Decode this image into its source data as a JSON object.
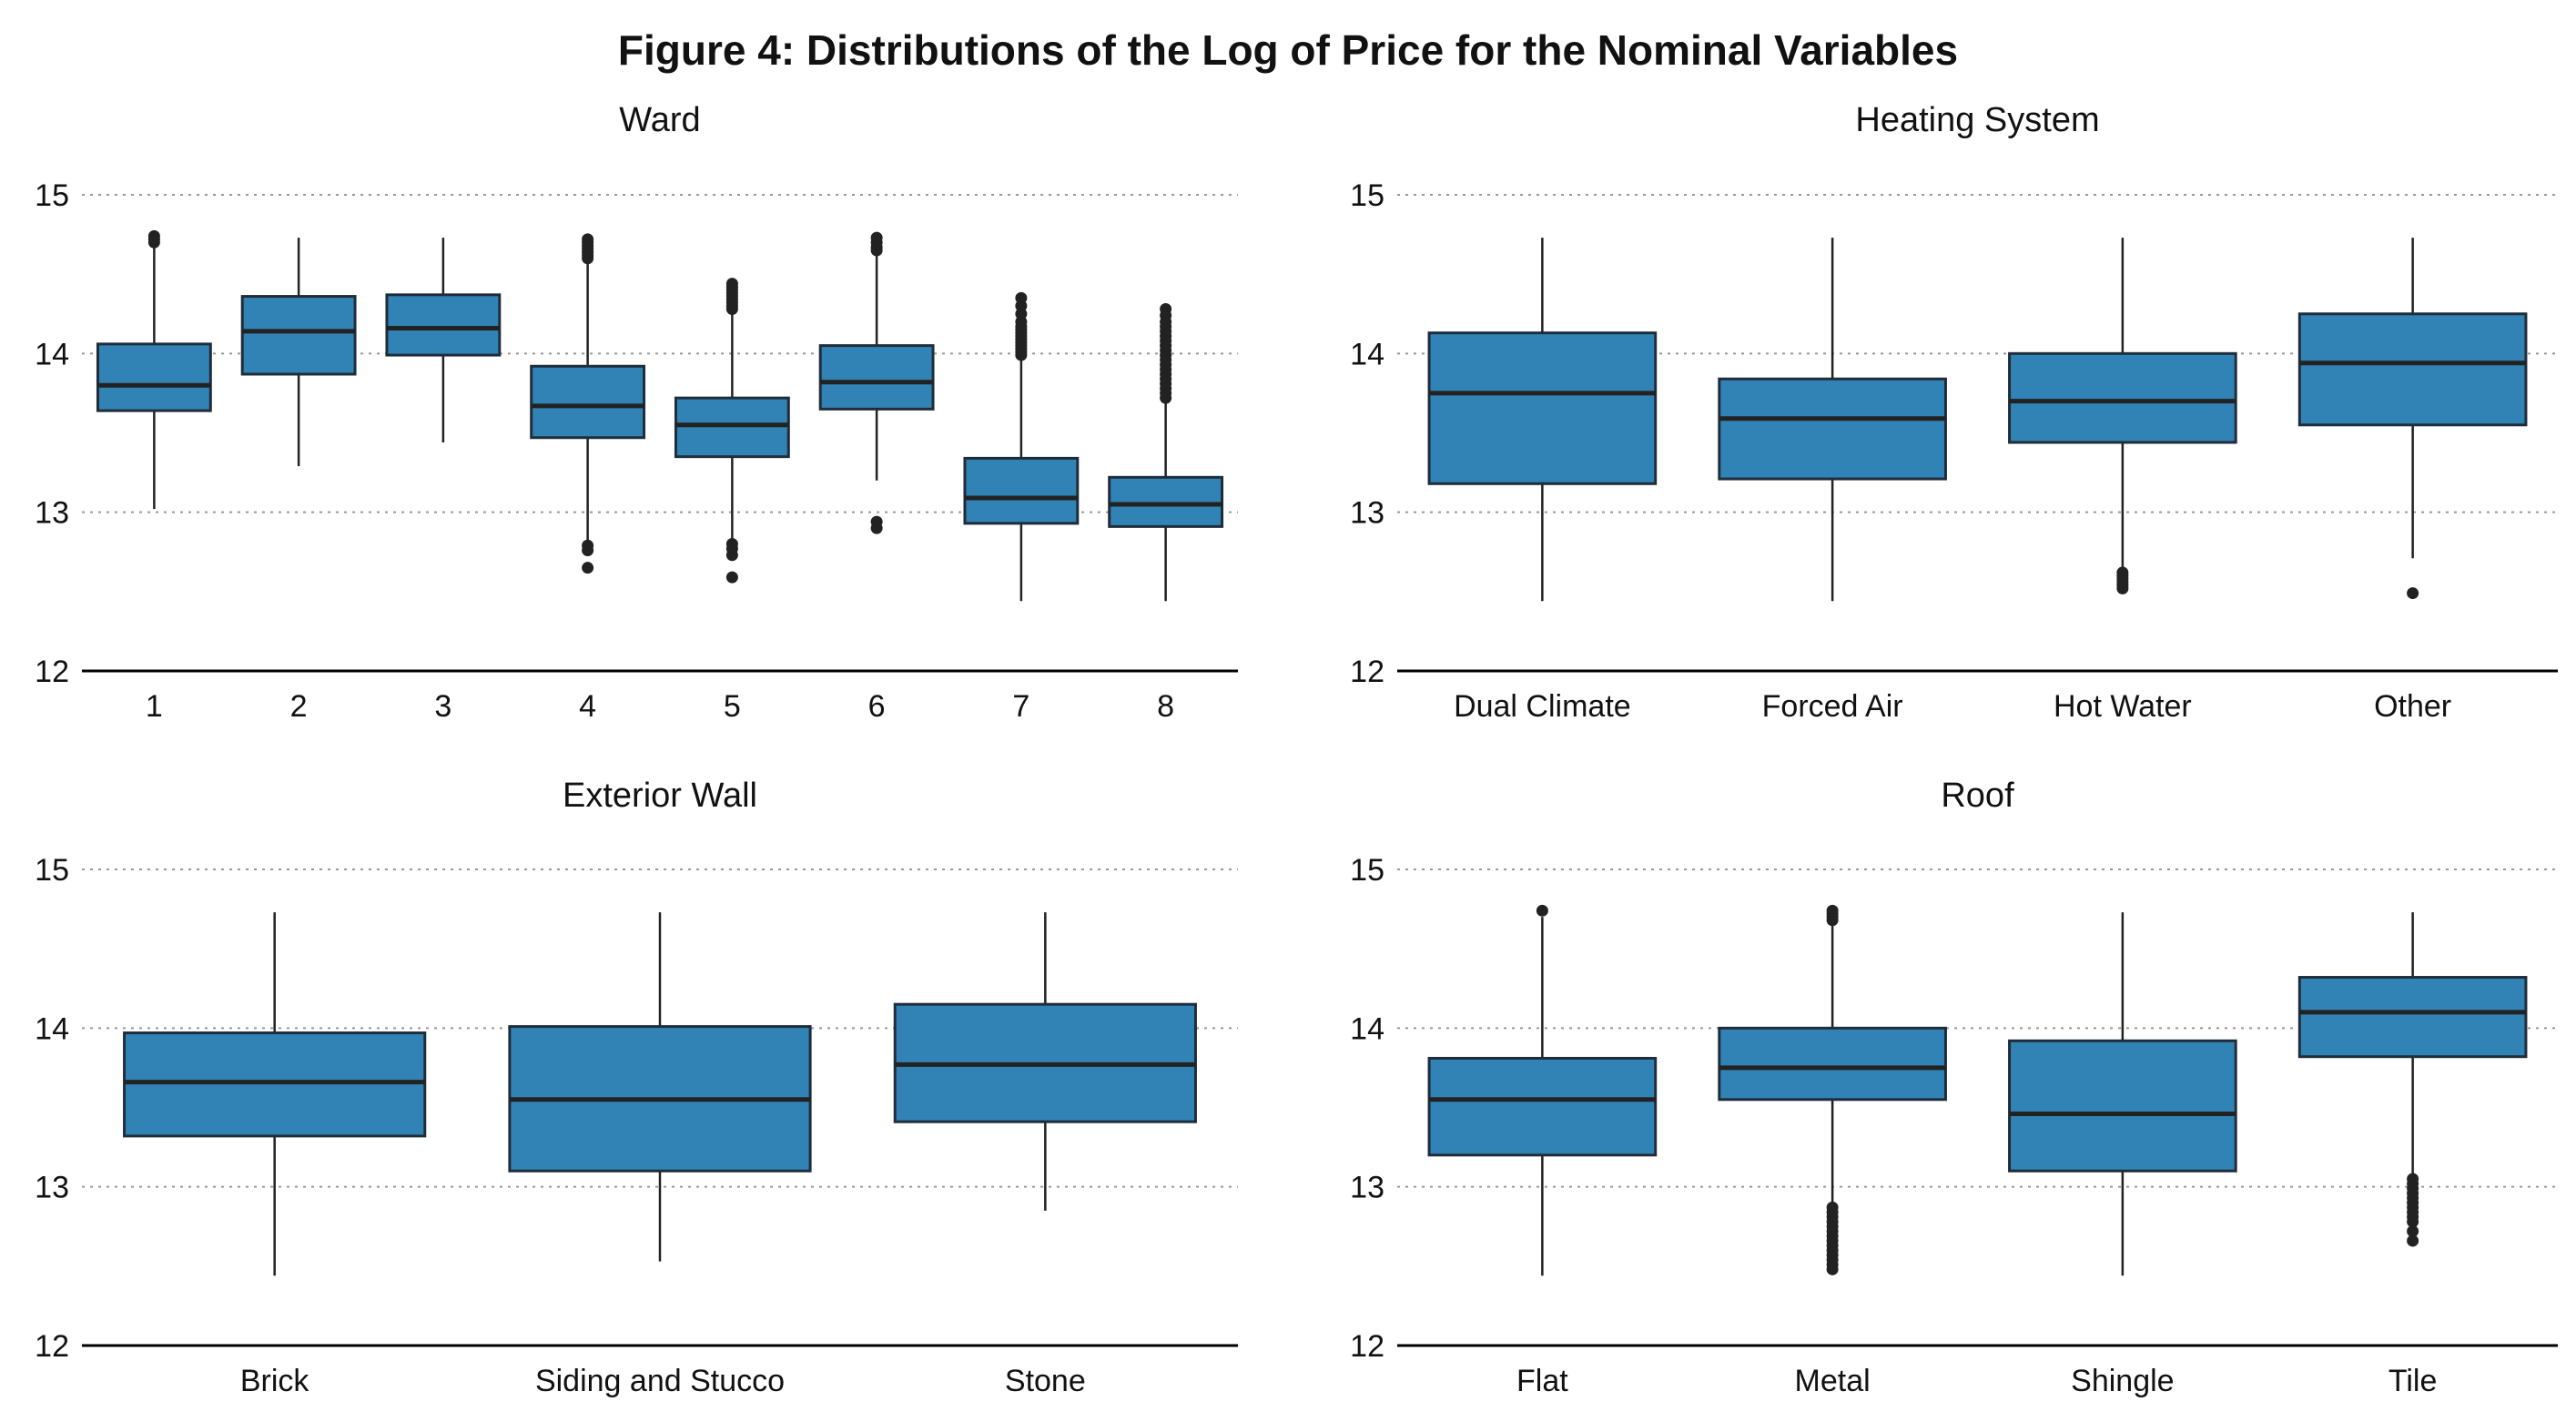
{
  "figure_title": "Figure 4: Distributions of the Log of Price for the Nominal Variables",
  "colors": {
    "box_fill": "#3283B5",
    "box_edge": "#1f2d3a",
    "median": "#222222",
    "grid": "#999999",
    "axis": "#000000"
  },
  "chart_data": [
    {
      "type": "box",
      "title": "Ward",
      "xlabel": "",
      "ylabel": "",
      "ylim": [
        12,
        15
      ],
      "yticks": [
        "12",
        "13",
        "14",
        "15"
      ],
      "grid": "horizontal dotted",
      "categories": [
        "1",
        "2",
        "3",
        "4",
        "5",
        "6",
        "7",
        "8"
      ],
      "boxes": [
        {
          "whislo": 13.02,
          "q1": 13.64,
          "median": 13.8,
          "q3": 14.06,
          "whishi": 14.72,
          "fliers": [
            14.7,
            14.72,
            14.74
          ]
        },
        {
          "whislo": 13.29,
          "q1": 13.87,
          "median": 14.14,
          "q3": 14.36,
          "whishi": 14.73,
          "fliers": []
        },
        {
          "whislo": 13.44,
          "q1": 13.99,
          "median": 14.16,
          "q3": 14.37,
          "whishi": 14.73,
          "fliers": []
        },
        {
          "whislo": 12.82,
          "q1": 13.47,
          "median": 13.67,
          "q3": 13.92,
          "whishi": 14.58,
          "fliers": [
            14.6,
            14.62,
            14.64,
            14.66,
            14.68,
            14.7,
            14.72,
            12.79,
            12.76,
            12.65
          ]
        },
        {
          "whislo": 12.82,
          "q1": 13.35,
          "median": 13.55,
          "q3": 13.72,
          "whishi": 14.26,
          "fliers": [
            14.28,
            14.3,
            14.32,
            14.34,
            14.36,
            14.38,
            14.4,
            14.42,
            14.44,
            12.8,
            12.77,
            12.73,
            12.59
          ]
        },
        {
          "whislo": 13.2,
          "q1": 13.65,
          "median": 13.82,
          "q3": 14.05,
          "whishi": 14.63,
          "fliers": [
            14.65,
            14.67,
            14.7,
            14.73,
            12.94,
            12.9
          ]
        },
        {
          "whislo": 12.44,
          "q1": 12.93,
          "median": 13.09,
          "q3": 13.34,
          "whishi": 13.97,
          "fliers": [
            13.99,
            14.01,
            14.03,
            14.05,
            14.07,
            14.09,
            14.11,
            14.13,
            14.15,
            14.17,
            14.2,
            14.25,
            14.3,
            14.35
          ]
        },
        {
          "whislo": 12.44,
          "q1": 12.91,
          "median": 13.05,
          "q3": 13.22,
          "whishi": 13.7,
          "fliers": [
            13.72,
            13.75,
            13.78,
            13.81,
            13.84,
            13.87,
            13.9,
            13.93,
            13.96,
            13.99,
            14.02,
            14.05,
            14.08,
            14.11,
            14.14,
            14.17,
            14.2,
            14.24,
            14.28
          ]
        }
      ]
    },
    {
      "type": "box",
      "title": "Heating System",
      "xlabel": "",
      "ylabel": "",
      "ylim": [
        12,
        15
      ],
      "yticks": [
        "12",
        "13",
        "14",
        "15"
      ],
      "grid": "horizontal dotted",
      "categories": [
        "Dual Climate",
        "Forced Air",
        "Hot Water",
        "Other"
      ],
      "boxes": [
        {
          "whislo": 12.44,
          "q1": 13.18,
          "median": 13.75,
          "q3": 14.13,
          "whishi": 14.73,
          "fliers": []
        },
        {
          "whislo": 12.44,
          "q1": 13.21,
          "median": 13.59,
          "q3": 13.84,
          "whishi": 14.73,
          "fliers": []
        },
        {
          "whislo": 12.65,
          "q1": 13.44,
          "median": 13.7,
          "q3": 14.0,
          "whishi": 14.73,
          "fliers": [
            12.62,
            12.6,
            12.58,
            12.56,
            12.54,
            12.52
          ]
        },
        {
          "whislo": 12.71,
          "q1": 13.55,
          "median": 13.94,
          "q3": 14.25,
          "whishi": 14.73,
          "fliers": [
            12.49
          ]
        }
      ]
    },
    {
      "type": "box",
      "title": "Exterior Wall",
      "xlabel": "",
      "ylabel": "",
      "ylim": [
        12,
        15
      ],
      "yticks": [
        "12",
        "13",
        "14",
        "15"
      ],
      "grid": "horizontal dotted",
      "categories": [
        "Brick",
        "Siding and Stucco",
        "Stone"
      ],
      "boxes": [
        {
          "whislo": 12.44,
          "q1": 13.32,
          "median": 13.66,
          "q3": 13.97,
          "whishi": 14.73,
          "fliers": []
        },
        {
          "whislo": 12.53,
          "q1": 13.1,
          "median": 13.55,
          "q3": 14.01,
          "whishi": 14.73,
          "fliers": []
        },
        {
          "whislo": 12.85,
          "q1": 13.41,
          "median": 13.77,
          "q3": 14.15,
          "whishi": 14.73,
          "fliers": []
        }
      ]
    },
    {
      "type": "box",
      "title": "Roof",
      "xlabel": "",
      "ylabel": "",
      "ylim": [
        12,
        15
      ],
      "yticks": [
        "12",
        "13",
        "14",
        "15"
      ],
      "grid": "horizontal dotted",
      "categories": [
        "Flat",
        "Metal",
        "Shingle",
        "Tile"
      ],
      "boxes": [
        {
          "whislo": 12.44,
          "q1": 13.2,
          "median": 13.55,
          "q3": 13.81,
          "whishi": 14.7,
          "fliers": [
            14.74
          ]
        },
        {
          "whislo": 12.89,
          "q1": 13.55,
          "median": 13.75,
          "q3": 14.0,
          "whishi": 14.66,
          "fliers": [
            14.68,
            14.7,
            14.72,
            14.74,
            12.87,
            12.84,
            12.81,
            12.78,
            12.75,
            12.72,
            12.69,
            12.66,
            12.63,
            12.6,
            12.57,
            12.54,
            12.51,
            12.48
          ]
        },
        {
          "whislo": 12.44,
          "q1": 13.1,
          "median": 13.46,
          "q3": 13.92,
          "whishi": 14.73,
          "fliers": []
        },
        {
          "whislo": 13.07,
          "q1": 13.82,
          "median": 14.1,
          "q3": 14.32,
          "whishi": 14.73,
          "fliers": [
            13.05,
            13.02,
            12.99,
            12.96,
            12.93,
            12.9,
            12.87,
            12.84,
            12.81,
            12.78,
            12.72,
            12.66
          ]
        }
      ]
    }
  ]
}
